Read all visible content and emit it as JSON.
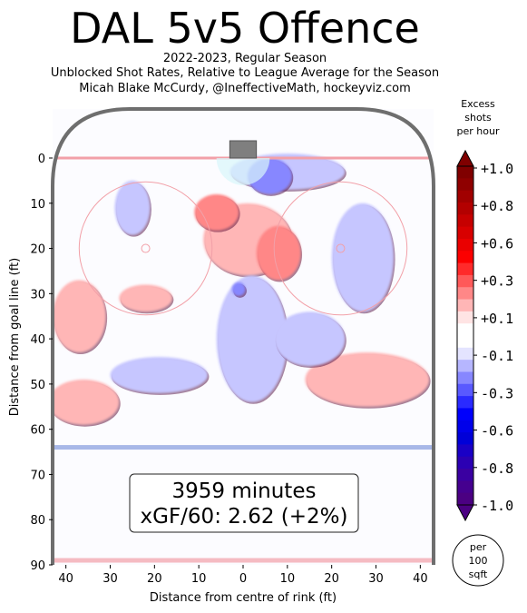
{
  "header": {
    "title": "DAL 5v5 Offence",
    "subtitle_1": "2022-2023, Regular Season",
    "subtitle_2": "Unblocked Shot Rates, Relative to League Average for the Season",
    "subtitle_3": "Micah Blake McCurdy, @IneffectiveMath, hockeyviz.com"
  },
  "chart_data": {
    "type": "heatmap",
    "xlabel": "Distance from centre of rink (ft)",
    "ylabel": "Distance from goal line (ft)",
    "xlim": [
      43,
      -43
    ],
    "ylim": [
      0,
      90
    ],
    "x_ticks": [
      "40",
      "30",
      "20",
      "10",
      "0",
      "10",
      "20",
      "30",
      "40"
    ],
    "x_tick_values": [
      40,
      30,
      20,
      10,
      0,
      -10,
      -20,
      -30,
      -40
    ],
    "y_ticks": [
      "0",
      "10",
      "20",
      "30",
      "40",
      "50",
      "60",
      "70",
      "80",
      "90"
    ],
    "y_tick_values": [
      0,
      10,
      20,
      30,
      40,
      50,
      60,
      70,
      80,
      90
    ],
    "annotation": {
      "minutes": "3959 minutes",
      "xgf": "xGF/60: 2.62 (+2%)"
    },
    "colorbar": {
      "title_lines": [
        "Excess",
        "shots",
        "per hour"
      ],
      "tick_labels": [
        "+1.0",
        "+0.8",
        "+0.6",
        "+0.3",
        "+0.1",
        "-0.1",
        "-0.3",
        "-0.6",
        "-0.8",
        "-1.0"
      ],
      "tick_values": [
        1.0,
        0.8,
        0.6,
        0.3,
        0.1,
        -0.1,
        -0.3,
        -0.6,
        -0.8,
        -1.0
      ],
      "colors": [
        "#800000",
        "#8f0000",
        "#a10000",
        "#b30000",
        "#c60000",
        "#d80000",
        "#ea0000",
        "#fc0000",
        "#ff2a2a",
        "#ff5959",
        "#ff8787",
        "#ffb6b6",
        "#ffe4e4",
        "#ffffff",
        "#ffffff",
        "#e4e4ff",
        "#b6b6ff",
        "#8787ff",
        "#5959ff",
        "#2a2aff",
        "#0000fc",
        "#0000ea",
        "#0000d8",
        "#1a00c6",
        "#2b00b3",
        "#3a00a1",
        "#45008f",
        "#4b0082"
      ],
      "unit_lines": [
        "per",
        "100",
        "sqft"
      ]
    },
    "regions": [
      {
        "sign": "positive",
        "level": 0.1,
        "center": [
          -1,
          18
        ],
        "rx": 10,
        "ry": 8
      },
      {
        "sign": "positive",
        "level": 0.3,
        "center": [
          6,
          12
        ],
        "rx": 5,
        "ry": 4
      },
      {
        "sign": "positive",
        "level": 0.3,
        "center": [
          -8,
          21
        ],
        "rx": 5,
        "ry": 6
      },
      {
        "sign": "positive",
        "level": 0.1,
        "center": [
          22,
          31
        ],
        "rx": 6,
        "ry": 3
      },
      {
        "sign": "positive",
        "level": 0.1,
        "center": [
          37,
          35
        ],
        "rx": 6,
        "ry": 8
      },
      {
        "sign": "positive",
        "level": 0.1,
        "center": [
          36,
          54
        ],
        "rx": 8,
        "ry": 5
      },
      {
        "sign": "positive",
        "level": 0.1,
        "center": [
          -28,
          49
        ],
        "rx": 14,
        "ry": 6
      },
      {
        "sign": "negative",
        "level": -0.1,
        "center": [
          -10,
          3
        ],
        "rx": 13,
        "ry": 4
      },
      {
        "sign": "negative",
        "level": -0.3,
        "center": [
          -6,
          4
        ],
        "rx": 5,
        "ry": 4
      },
      {
        "sign": "negative",
        "level": -0.1,
        "center": [
          25,
          11
        ],
        "rx": 4,
        "ry": 6
      },
      {
        "sign": "negative",
        "level": -0.1,
        "center": [
          -27,
          22
        ],
        "rx": 7,
        "ry": 12
      },
      {
        "sign": "negative",
        "level": -0.1,
        "center": [
          -2,
          40
        ],
        "rx": 8,
        "ry": 14
      },
      {
        "sign": "negative",
        "level": -0.1,
        "center": [
          19,
          48
        ],
        "rx": 11,
        "ry": 4
      },
      {
        "sign": "negative",
        "level": -0.1,
        "center": [
          -15,
          40
        ],
        "rx": 8,
        "ry": 6
      },
      {
        "sign": "negative",
        "level": -0.3,
        "center": [
          1,
          29
        ],
        "rx": 1.5,
        "ry": 1.5
      }
    ]
  },
  "colors": {
    "boards": "#6e6e6e",
    "goal_line": "#f2a0a8",
    "blue_line": "#a8b8e8",
    "faceoff_circle": "#f2a0a8",
    "crease": "#d9f7fb",
    "net": "#7f7f7f",
    "positive": "#ffb6b6",
    "positive_strong": "#ff8787",
    "negative": "#c6c6ff",
    "negative_strong": "#8787ff"
  }
}
